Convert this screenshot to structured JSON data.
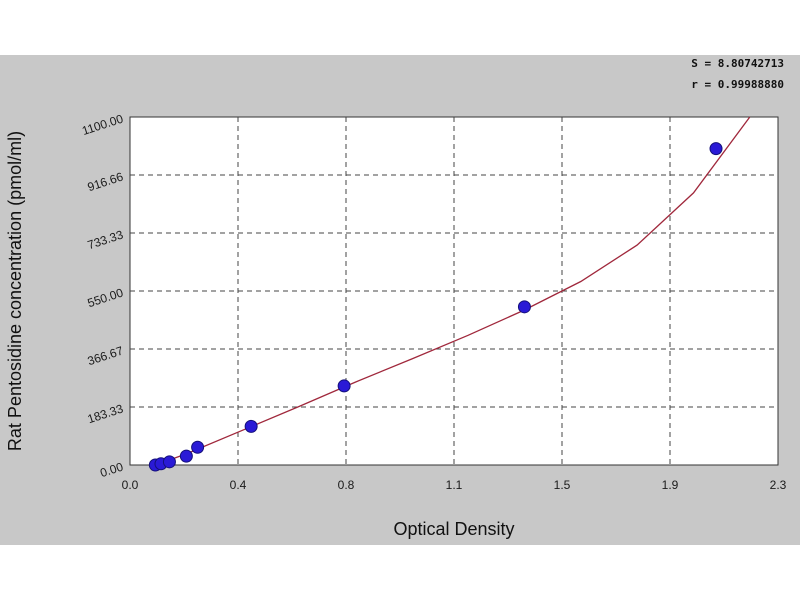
{
  "chart_data": {
    "type": "scatter",
    "title": "",
    "xlabel": "Optical Density",
    "ylabel": "Rat Pentosidine concentration (pmol/ml)",
    "xlim": [
      0.0,
      2.3
    ],
    "ylim": [
      0.0,
      1100.0
    ],
    "x_ticks": [
      "0.0",
      "0.4",
      "0.8",
      "1.1",
      "1.5",
      "1.9",
      "2.3"
    ],
    "y_ticks": [
      "0.00",
      "183.33",
      "366.67",
      "550.00",
      "733.33",
      "916.66",
      "1100.00"
    ],
    "grid": true,
    "points": [
      {
        "x": 0.09,
        "y": 0
      },
      {
        "x": 0.11,
        "y": 4
      },
      {
        "x": 0.14,
        "y": 10
      },
      {
        "x": 0.2,
        "y": 28
      },
      {
        "x": 0.24,
        "y": 56
      },
      {
        "x": 0.43,
        "y": 122
      },
      {
        "x": 0.76,
        "y": 250
      },
      {
        "x": 1.4,
        "y": 500
      },
      {
        "x": 2.08,
        "y": 1000
      }
    ],
    "fit_curve": [
      [
        0.09,
        0
      ],
      [
        0.2,
        35
      ],
      [
        0.4,
        110
      ],
      [
        0.6,
        185
      ],
      [
        0.8,
        262
      ],
      [
        1.0,
        335
      ],
      [
        1.2,
        410
      ],
      [
        1.4,
        490
      ],
      [
        1.6,
        580
      ],
      [
        1.8,
        695
      ],
      [
        2.0,
        860
      ],
      [
        2.2,
        1100
      ]
    ],
    "stats": {
      "s": "S = 8.80742713",
      "r": "r = 0.99988880"
    },
    "colors": {
      "point_fill": "#2a1ad6",
      "point_stroke": "#14107a",
      "curve": "#a0283c",
      "grid": "#444444",
      "background": "#c8c8c8",
      "plot_area": "#ffffff"
    }
  }
}
